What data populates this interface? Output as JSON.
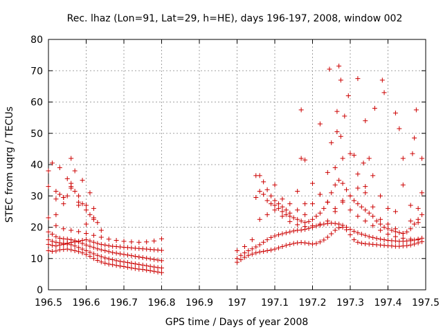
{
  "chart_data": {
    "type": "scatter",
    "title": "Rec. lhaz (Lon=91, Lat=29, h=HE), days 196-197, 2008, window 002",
    "xlabel": "GPS time / Days of year 2008",
    "ylabel": "STEC from uqrg / TECUs",
    "xlim": [
      196.5,
      197.5
    ],
    "ylim": [
      0,
      80
    ],
    "x_ticks": [
      "196.5",
      "196.6",
      "196.7",
      "196.8",
      "196.9",
      "197",
      "197.1",
      "197.2",
      "197.3",
      "197.4",
      "197.5"
    ],
    "y_ticks": [
      "0",
      "10",
      "20",
      "30",
      "40",
      "50",
      "60",
      "70",
      "80"
    ],
    "grid": true,
    "marker": "+",
    "color": "#cc0000",
    "series": [
      {
        "name": "t1",
        "x": [
          196.5,
          196.51,
          196.52,
          196.53,
          196.54,
          196.55,
          196.56,
          196.57,
          196.58,
          196.59,
          196.6,
          196.61,
          196.62,
          196.63,
          196.64,
          196.65,
          196.66,
          196.67,
          196.68,
          196.69,
          196.7,
          196.71,
          196.72,
          196.73,
          196.74,
          196.75,
          196.76,
          196.77,
          196.78,
          196.79,
          196.8
        ],
        "y": [
          12.5,
          12.3,
          12.4,
          12.8,
          12.9,
          13.0,
          12.8,
          12.5,
          12.2,
          11.8,
          11.3,
          10.7,
          10.0,
          9.4,
          8.9,
          8.5,
          8.2,
          8.0,
          7.8,
          7.6,
          7.4,
          7.2,
          7.0,
          6.8,
          6.6,
          6.5,
          6.3,
          6.1,
          5.9,
          5.7,
          5.5
        ]
      },
      {
        "name": "t2",
        "x": [
          196.5,
          196.51,
          196.52,
          196.53,
          196.54,
          196.55,
          196.56,
          196.57,
          196.58,
          196.59,
          196.6,
          196.61,
          196.62,
          196.63,
          196.64,
          196.65,
          196.66,
          196.67,
          196.68,
          196.69,
          196.7,
          196.71,
          196.72,
          196.73,
          196.74,
          196.75,
          196.76,
          196.77,
          196.78,
          196.79,
          196.8
        ],
        "y": [
          14.5,
          14.2,
          14.0,
          14.3,
          14.5,
          14.6,
          14.4,
          14.0,
          13.5,
          13.0,
          12.5,
          12.0,
          11.5,
          11.0,
          10.6,
          10.2,
          9.9,
          9.6,
          9.3,
          9.1,
          8.9,
          8.7,
          8.5,
          8.3,
          8.1,
          7.9,
          7.7,
          7.5,
          7.3,
          7.1,
          7.0
        ]
      },
      {
        "name": "t3",
        "x": [
          196.5,
          196.51,
          196.52,
          196.53,
          196.54,
          196.55,
          196.56,
          196.57,
          196.58,
          196.59,
          196.6,
          196.61,
          196.62,
          196.63,
          196.64,
          196.65,
          196.66,
          196.67,
          196.68,
          196.69,
          196.7,
          196.71,
          196.72,
          196.73,
          196.74,
          196.75,
          196.76,
          196.77,
          196.78,
          196.79,
          196.8
        ],
        "y": [
          18.5,
          17.8,
          17.0,
          16.5,
          16.3,
          16.2,
          16.0,
          15.7,
          15.3,
          14.8,
          14.3,
          13.9,
          13.5,
          13.1,
          12.8,
          12.5,
          12.2,
          11.9,
          11.7,
          11.5,
          11.3,
          11.1,
          10.9,
          10.7,
          10.5,
          10.3,
          10.1,
          9.9,
          9.7,
          9.5,
          9.3
        ]
      },
      {
        "name": "t4",
        "x": [
          196.5,
          196.52,
          196.54,
          196.56,
          196.58,
          196.6,
          196.62,
          196.64,
          196.66,
          196.68,
          196.7,
          196.72,
          196.74,
          196.76,
          196.78,
          196.8
        ],
        "y": [
          23.0,
          20.5,
          19.5,
          19.0,
          18.6,
          18.0,
          17.4,
          16.8,
          16.2,
          15.8,
          15.5,
          15.3,
          15.2,
          15.3,
          15.6,
          16.3
        ]
      },
      {
        "name": "t5",
        "x": [
          196.5,
          196.51,
          196.52,
          196.53,
          196.54,
          196.55,
          196.56,
          196.57,
          196.58,
          196.59,
          196.6,
          196.61,
          196.62,
          196.63,
          196.64,
          196.65,
          196.66,
          196.67,
          196.68,
          196.69,
          196.7,
          196.71,
          196.72,
          196.73,
          196.74,
          196.75,
          196.76,
          196.77,
          196.78,
          196.79,
          196.8
        ],
        "y": [
          16.0,
          15.5,
          15.2,
          15.0,
          14.8,
          14.9,
          15.1,
          15.3,
          15.5,
          15.8,
          16.0,
          15.6,
          15.2,
          14.8,
          14.5,
          14.3,
          14.1,
          13.9,
          13.8,
          13.7,
          13.6,
          13.5,
          13.4,
          13.3,
          13.2,
          13.1,
          13.0,
          12.9,
          12.8,
          12.7,
          12.6
        ]
      },
      {
        "name": "t6",
        "x": [
          196.5,
          196.51,
          196.52,
          196.53,
          196.54,
          196.55,
          196.56,
          196.57,
          196.58,
          196.59,
          196.6,
          196.61,
          196.62,
          196.63
        ],
        "y": [
          38.0,
          40.5,
          31.5,
          30.5,
          29.5,
          30.0,
          32.5,
          31.5,
          27.0,
          27.5,
          25.5,
          24.0,
          22.5,
          21.5
        ]
      },
      {
        "name": "t7",
        "x": [
          196.53,
          196.55,
          196.57,
          196.59,
          196.61
        ],
        "y": [
          39.0,
          35.5,
          38.0,
          35.0,
          31.0
        ]
      },
      {
        "name": "t8",
        "x": [
          196.52,
          196.54,
          196.56,
          196.58,
          196.6,
          196.62,
          196.64
        ],
        "y": [
          29.0,
          29.5,
          34.0,
          28.0,
          21.0,
          23.0,
          19.0
        ]
      },
      {
        "name": "t9",
        "x": [
          196.5,
          196.52,
          196.54,
          196.56,
          196.58,
          196.6,
          196.62
        ],
        "y": [
          33.0,
          24.0,
          27.5,
          33.0,
          30.0,
          27.0,
          26.0
        ]
      },
      {
        "name": "t10",
        "x": [
          196.56
        ],
        "y": [
          42.0
        ]
      },
      {
        "name": "t11",
        "x": [
          197.0,
          197.01,
          197.02,
          197.03,
          197.04,
          197.05,
          197.06,
          197.07,
          197.08,
          197.09,
          197.1,
          197.11,
          197.12,
          197.13,
          197.14,
          197.15,
          197.16,
          197.17,
          197.18,
          197.19,
          197.2,
          197.21,
          197.22,
          197.23,
          197.24,
          197.25,
          197.26,
          197.27,
          197.28,
          197.29,
          197.3,
          197.31,
          197.32,
          197.33,
          197.34,
          197.35,
          197.36,
          197.37,
          197.38,
          197.39,
          197.4,
          197.41,
          197.42,
          197.43,
          197.44,
          197.45,
          197.46,
          197.47,
          197.48,
          197.49
        ],
        "y": [
          8.8,
          9.6,
          10.4,
          11.0,
          11.4,
          11.8,
          12.1,
          12.3,
          12.5,
          12.7,
          13.0,
          13.4,
          13.8,
          14.2,
          14.5,
          14.8,
          15.0,
          15.1,
          15.0,
          14.8,
          14.6,
          14.8,
          15.3,
          15.9,
          16.8,
          17.9,
          19.0,
          19.8,
          20.0,
          19.2,
          17.6,
          16.0,
          15.2,
          14.9,
          14.7,
          14.6,
          14.5,
          14.4,
          14.3,
          14.2,
          14.1,
          14.0,
          13.9,
          13.9,
          14.0,
          14.1,
          14.3,
          14.6,
          15.0,
          15.4
        ]
      },
      {
        "name": "t12",
        "x": [
          197.0,
          197.01,
          197.02,
          197.03,
          197.04,
          197.05,
          197.06,
          197.07,
          197.08,
          197.09,
          197.1,
          197.11,
          197.12,
          197.13,
          197.14,
          197.15,
          197.16,
          197.17,
          197.18,
          197.19,
          197.2,
          197.21,
          197.22,
          197.23,
          197.24,
          197.25,
          197.26,
          197.27,
          197.28,
          197.29,
          197.3,
          197.31,
          197.32,
          197.33,
          197.34,
          197.35,
          197.36,
          197.37,
          197.38,
          197.39,
          197.4,
          197.41,
          197.42,
          197.43,
          197.44,
          197.45,
          197.46,
          197.47,
          197.48,
          197.49
        ],
        "y": [
          10.0,
          11.0,
          11.8,
          12.5,
          13.1,
          13.7,
          14.4,
          15.2,
          16.0,
          16.7,
          17.2,
          17.6,
          17.9,
          18.2,
          18.5,
          18.8,
          19.0,
          19.1,
          19.3,
          19.6,
          20.0,
          20.4,
          20.7,
          21.0,
          21.2,
          21.3,
          21.2,
          21.0,
          20.6,
          20.0,
          19.3,
          18.7,
          18.2,
          17.8,
          17.4,
          17.0,
          16.7,
          16.4,
          16.2,
          16.0,
          15.8,
          15.7,
          15.6,
          15.5,
          15.5,
          15.6,
          15.7,
          15.9,
          16.2,
          16.5
        ]
      },
      {
        "name": "t13",
        "x": [
          197.0,
          197.02,
          197.04,
          197.06,
          197.08,
          197.1,
          197.12,
          197.14,
          197.16,
          197.18,
          197.2,
          197.22,
          197.24,
          197.26,
          197.28,
          197.3,
          197.32,
          197.34,
          197.36,
          197.38,
          197.4,
          197.42,
          197.44,
          197.46,
          197.48
        ],
        "y": [
          12.5,
          13.8,
          16.0,
          22.5,
          24.0,
          25.5,
          23.5,
          21.8,
          20.8,
          20.2,
          20.5,
          21.0,
          22.0,
          25.0,
          28.0,
          25.5,
          23.5,
          22.0,
          20.5,
          19.0,
          17.8,
          17.0,
          16.5,
          16.2,
          16.0
        ]
      },
      {
        "name": "t14",
        "x": [
          197.05,
          197.06,
          197.07,
          197.08,
          197.09,
          197.1,
          197.11,
          197.12,
          197.13,
          197.14,
          197.15,
          197.16,
          197.17,
          197.18,
          197.19,
          197.2,
          197.21,
          197.22,
          197.23,
          197.24,
          197.25,
          197.26,
          197.27,
          197.28,
          197.29,
          197.3,
          197.31,
          197.32,
          197.33,
          197.34,
          197.35,
          197.36,
          197.37,
          197.38,
          197.39,
          197.4,
          197.41,
          197.42,
          197.43,
          197.44,
          197.45,
          197.46,
          197.47,
          197.48,
          197.49
        ],
        "y": [
          29.5,
          31.5,
          30.5,
          28.5,
          27.5,
          27.0,
          26.0,
          25.0,
          24.0,
          23.5,
          23.0,
          22.5,
          22.0,
          21.5,
          21.8,
          22.5,
          23.5,
          24.5,
          26.0,
          28.0,
          31.0,
          33.5,
          35.0,
          34.0,
          32.0,
          30.0,
          28.5,
          27.5,
          26.5,
          25.5,
          24.5,
          23.5,
          22.0,
          21.0,
          20.0,
          19.5,
          19.0,
          18.6,
          18.3,
          18.0,
          18.5,
          19.5,
          21.0,
          22.5,
          24.0
        ]
      },
      {
        "name": "t15",
        "x": [
          197.05,
          197.06,
          197.07,
          197.08,
          197.09,
          197.1,
          197.11,
          197.12,
          197.13,
          197.14,
          197.16,
          197.18,
          197.2,
          197.22,
          197.24,
          197.26,
          197.28,
          197.3,
          197.32,
          197.34,
          197.36,
          197.38,
          197.4,
          197.42,
          197.44,
          197.46,
          197.48
        ],
        "y": [
          36.5,
          36.5,
          34.5,
          32.0,
          30.0,
          28.5,
          27.5,
          26.5,
          25.5,
          24.5,
          31.5,
          27.5,
          34.0,
          30.5,
          37.5,
          39.0,
          42.0,
          43.5,
          37.0,
          33.0,
          36.5,
          30.0,
          26.0,
          25.0,
          33.5,
          27.0,
          26.0
        ]
      },
      {
        "name": "t16",
        "x": [
          197.1,
          197.12,
          197.14,
          197.16,
          197.18,
          197.2,
          197.22,
          197.24,
          197.26,
          197.28,
          197.3,
          197.32,
          197.34,
          197.36,
          197.38,
          197.4,
          197.42,
          197.44,
          197.46,
          197.48
        ],
        "y": [
          33.5,
          29.0,
          27.5,
          25.5,
          24.0,
          27.5,
          30.5,
          28.0,
          26.0,
          28.5,
          30.0,
          32.5,
          31.0,
          26.5,
          22.5,
          21.0,
          19.5,
          18.0,
          22.0,
          21.5
        ]
      },
      {
        "name": "t17",
        "x": [
          197.17,
          197.22,
          197.245,
          197.265,
          197.275,
          197.295,
          197.32,
          197.34,
          197.365,
          197.385,
          197.42,
          197.475
        ],
        "y": [
          57.5,
          53.0,
          70.5,
          57.0,
          67.0,
          62.0,
          67.5,
          54.0,
          58.0,
          67.0,
          56.5,
          57.5
        ]
      },
      {
        "name": "t18",
        "x": [
          197.17,
          197.18,
          197.25,
          197.265,
          197.275,
          197.285,
          197.31,
          197.335,
          197.35,
          197.39,
          197.43,
          197.47,
          197.49
        ],
        "y": [
          42.0,
          41.5,
          47.0,
          50.5,
          49.0,
          55.5,
          43.0,
          40.5,
          42.0,
          63.0,
          51.5,
          48.5,
          42.0
        ]
      },
      {
        "name": "t19",
        "x": [
          197.27,
          197.44,
          197.465,
          197.49
        ],
        "y": [
          71.5,
          42.0,
          43.5,
          31.0
        ]
      }
    ]
  }
}
